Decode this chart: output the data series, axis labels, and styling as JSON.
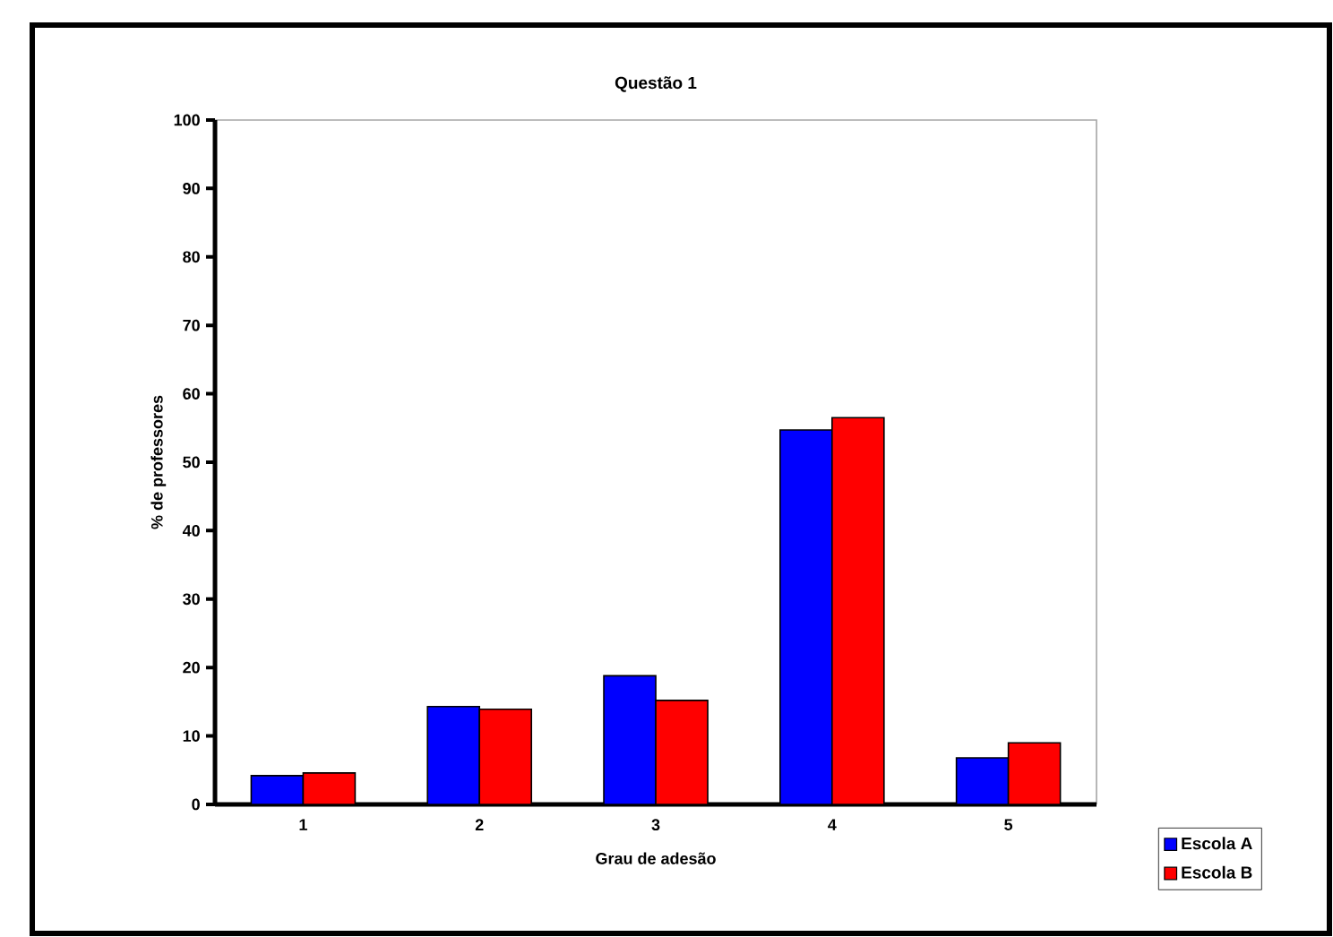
{
  "chart_data": {
    "type": "bar",
    "title": "Questão 1",
    "xlabel": "Grau de adesão",
    "ylabel": "% de professores",
    "categories": [
      "1",
      "2",
      "3",
      "4",
      "5"
    ],
    "series": [
      {
        "name": "Escola A",
        "color": "#0000ff",
        "values": [
          4.2,
          14.3,
          18.8,
          54.7,
          6.8
        ]
      },
      {
        "name": "Escola B",
        "color": "#ff0000",
        "values": [
          4.6,
          13.9,
          15.2,
          56.5,
          9.0
        ]
      }
    ],
    "ylim": [
      0,
      100
    ],
    "yticks": [
      0,
      10,
      20,
      30,
      40,
      50,
      60,
      70,
      80,
      90,
      100
    ],
    "legend": "bottom right"
  }
}
